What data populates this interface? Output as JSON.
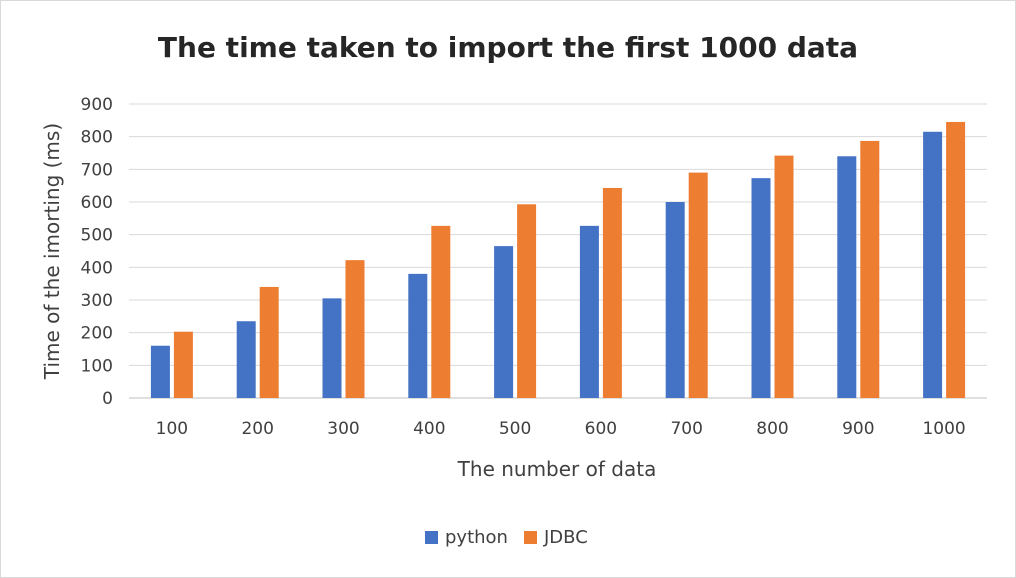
{
  "chart_data": {
    "type": "bar",
    "title": "The time taken to import the first 1000 data",
    "xlabel": "The number of data",
    "ylabel": "Time of the imorting (ms)",
    "categories": [
      "100",
      "200",
      "300",
      "400",
      "500",
      "600",
      "700",
      "800",
      "900",
      "1000"
    ],
    "series": [
      {
        "name": "python",
        "color": "#4472c4",
        "values": [
          160,
          235,
          305,
          380,
          465,
          527,
          600,
          673,
          740,
          815
        ]
      },
      {
        "name": "JDBC",
        "color": "#ed7d31",
        "values": [
          203,
          340,
          422,
          527,
          593,
          643,
          690,
          742,
          787,
          845
        ]
      }
    ],
    "ylim": [
      0,
      900
    ],
    "yticks": [
      0,
      100,
      200,
      300,
      400,
      500,
      600,
      700,
      800,
      900
    ],
    "grid": true,
    "legend_position": "bottom"
  }
}
